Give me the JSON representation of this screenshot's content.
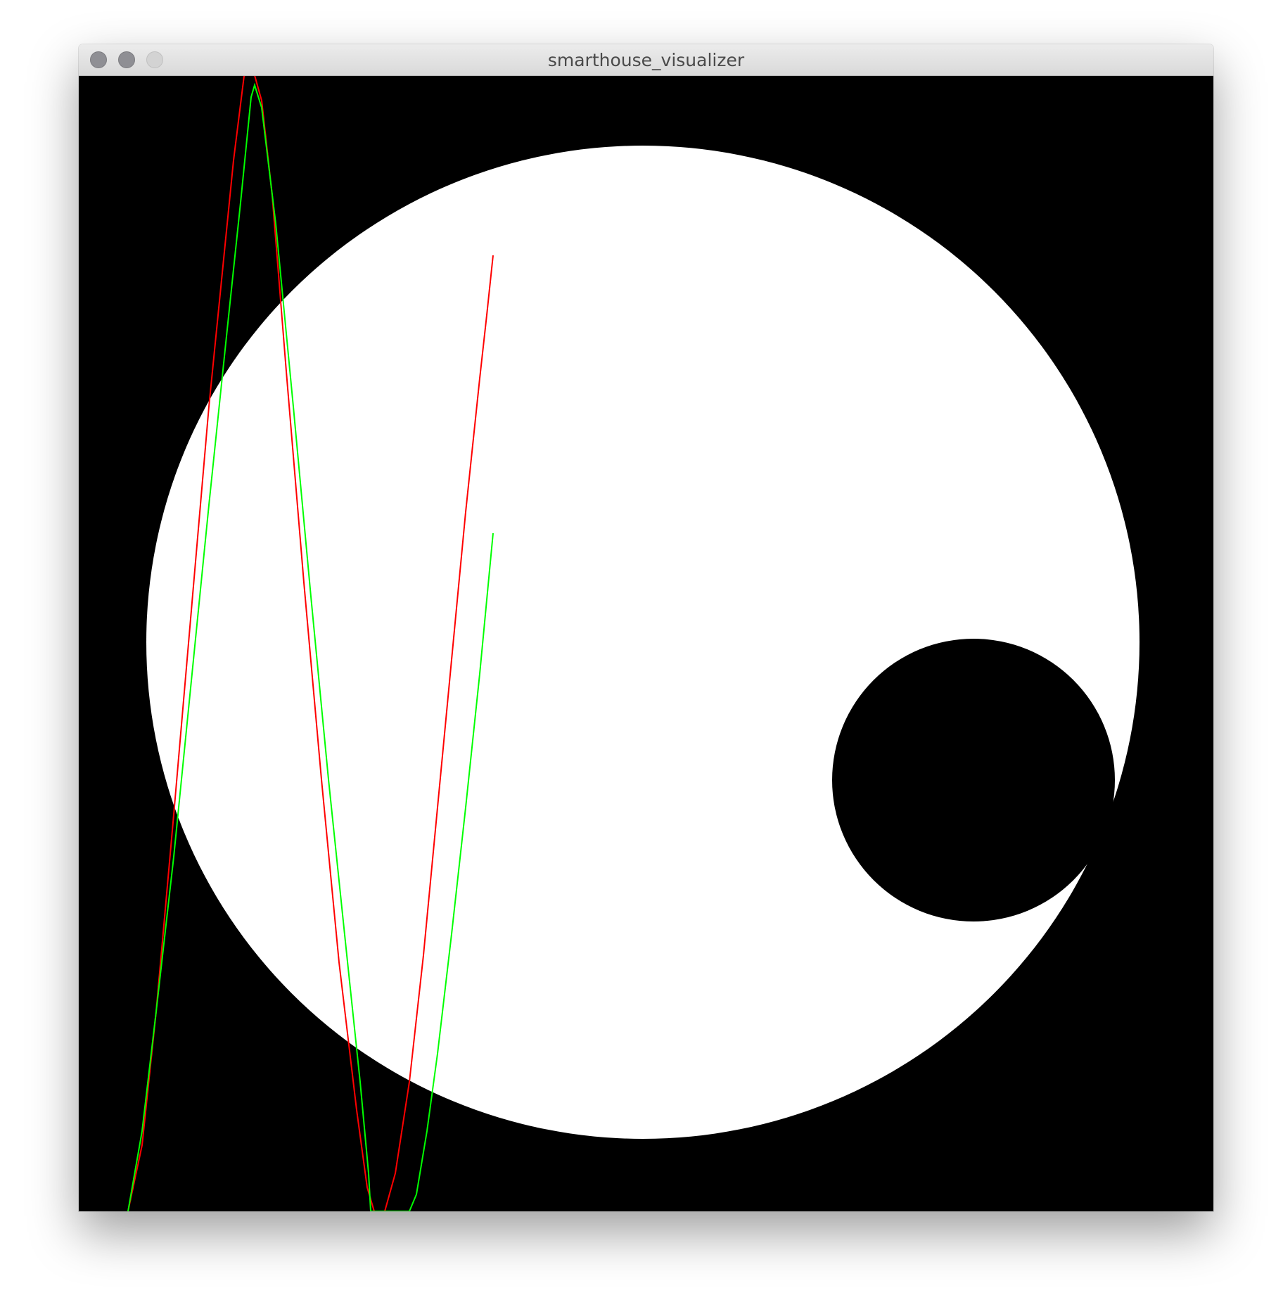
{
  "window": {
    "title": "smarthouse_visualizer"
  },
  "colors": {
    "background": "#000000",
    "big_circle": "#ffffff",
    "small_circle": "#000000",
    "red_trace": "#ff0000",
    "green_trace": "#00ff00"
  },
  "icons": {
    "close": "close-icon",
    "minimize": "minimize-icon",
    "zoom": "zoom-icon"
  }
}
